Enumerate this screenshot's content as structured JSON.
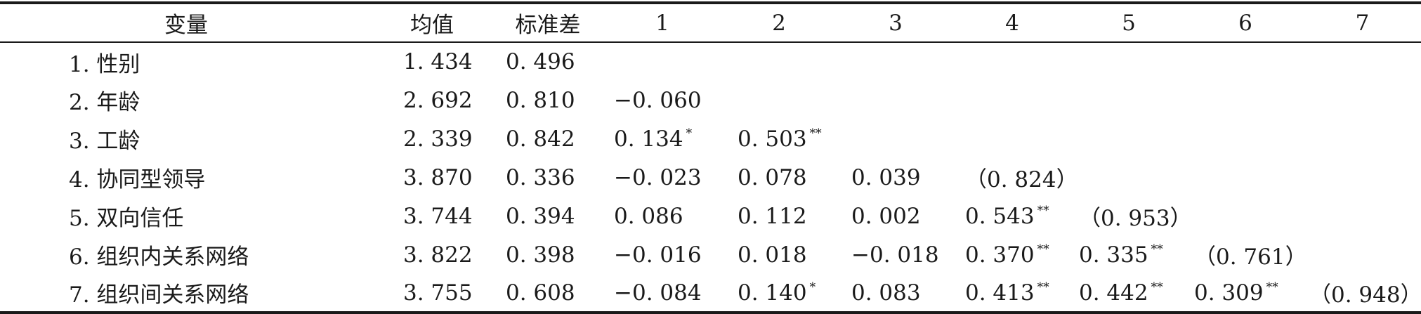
{
  "headers": [
    "变量",
    "均值",
    "标准差",
    "1",
    "2",
    "3",
    "4",
    "5",
    "6",
    "7"
  ],
  "rows": [
    {
      "label": "1. 性别",
      "mean": "1. 434",
      "sd": "0. 496",
      "c1": "",
      "c1s": "",
      "c2": "",
      "c2s": "",
      "c3": "",
      "c3s": "",
      "c4": "",
      "c4s": "",
      "c5": "",
      "c5s": "",
      "c6": "",
      "c6s": "",
      "c7": "",
      "c7s": ""
    },
    {
      "label": "2. 年龄",
      "mean": "2. 692",
      "sd": "0. 810",
      "c1": "−0. 060",
      "c1s": "",
      "c2": "",
      "c2s": "",
      "c3": "",
      "c3s": "",
      "c4": "",
      "c4s": "",
      "c5": "",
      "c5s": "",
      "c6": "",
      "c6s": "",
      "c7": "",
      "c7s": ""
    },
    {
      "label": "3. 工龄",
      "mean": "2. 339",
      "sd": "0. 842",
      "c1": " 0. 134",
      "c1s": "*",
      "c2": "0. 503",
      "c2s": "**",
      "c3": "",
      "c3s": "",
      "c4": "",
      "c4s": "",
      "c5": "",
      "c5s": "",
      "c6": "",
      "c6s": "",
      "c7": "",
      "c7s": ""
    },
    {
      "label": "4. 协同型领导",
      "mean": "3. 870",
      "sd": "0. 336",
      "c1": "−0. 023",
      "c1s": "",
      "c2": "0. 078",
      "c2s": "",
      "c3": " 0. 039",
      "c3s": "",
      "c4": "（0. 824）",
      "c4s": "",
      "c5": "",
      "c5s": "",
      "c6": "",
      "c6s": "",
      "c7": "",
      "c7s": ""
    },
    {
      "label": "5. 双向信任",
      "mean": "3. 744",
      "sd": "0. 394",
      "c1": " 0. 086",
      "c1s": "",
      "c2": "0. 112",
      "c2s": "",
      "c3": " 0. 002",
      "c3s": "",
      "c4": "  0. 543",
      "c4s": "**",
      "c5": "（0. 953）",
      "c5s": "",
      "c6": "",
      "c6s": "",
      "c7": "",
      "c7s": ""
    },
    {
      "label": "6. 组织内关系网络",
      "mean": "3. 822",
      "sd": "0. 398",
      "c1": "−0. 016",
      "c1s": "",
      "c2": "0. 018",
      "c2s": "",
      "c3": "−0. 018",
      "c3s": "",
      "c4": "  0. 370",
      "c4s": "**",
      "c5": "  0. 335",
      "c5s": "**",
      "c6": "（0. 761）",
      "c6s": "",
      "c7": "",
      "c7s": ""
    },
    {
      "label": "7. 组织间关系网络",
      "mean": "3. 755",
      "sd": "0. 608",
      "c1": "−0. 084",
      "c1s": "",
      "c2": "0. 140",
      "c2s": "*",
      "c3": " 0. 083",
      "c3s": "",
      "c4": "  0. 413",
      "c4s": "**",
      "c5": "  0. 442",
      "c5s": "**",
      "c6": "  0. 309",
      "c6s": "**",
      "c7": "（0. 948）",
      "c7s": ""
    }
  ]
}
